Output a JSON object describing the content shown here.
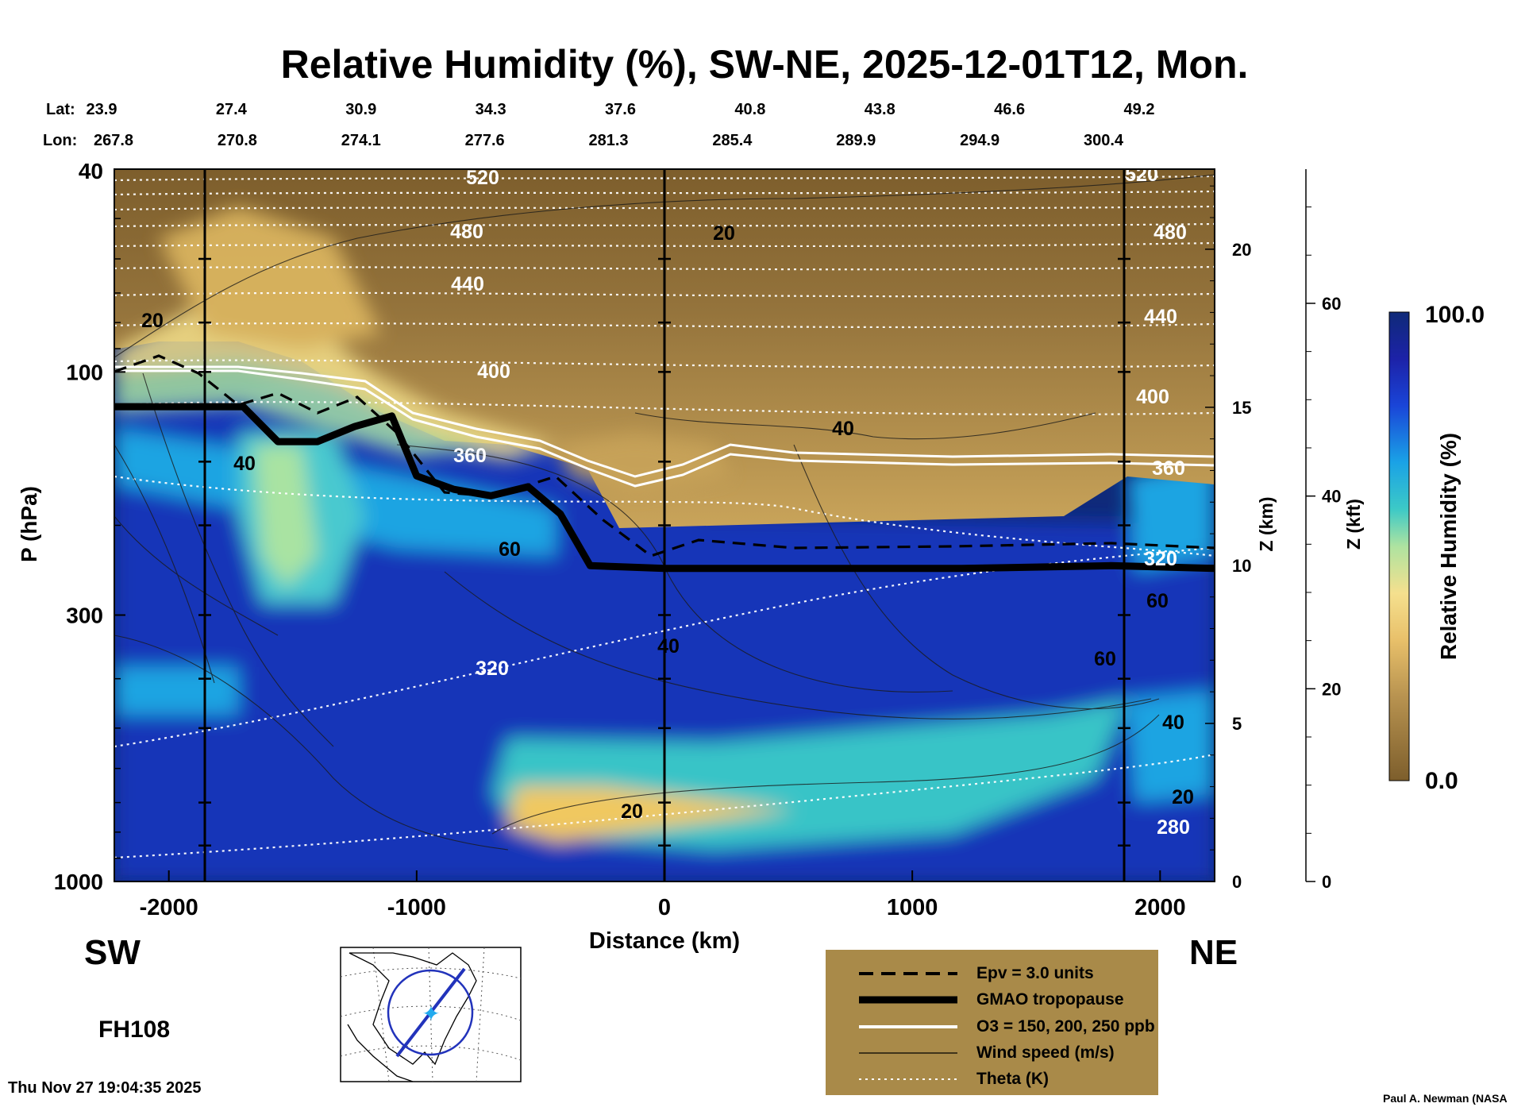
{
  "title": "Relative Humidity (%), SW-NE, 2025-12-01T12, Mon.",
  "header": {
    "lat_label": "Lat:",
    "lon_label": "Lon:",
    "lat": [
      "23.9",
      "27.4",
      "30.9",
      "34.3",
      "37.6",
      "40.8",
      "43.8",
      "46.6",
      "49.2"
    ],
    "lon": [
      "267.8",
      "270.8",
      "274.1",
      "277.6",
      "281.3",
      "285.4",
      "289.9",
      "294.9",
      "300.4"
    ]
  },
  "chart_data": {
    "type": "heatmap",
    "title": "Relative Humidity (%), SW-NE, 2025-12-01T12, Mon.",
    "xlabel": "Distance (km)",
    "ylabel": "P (hPa)",
    "xlim": [
      -2220,
      2220
    ],
    "ylim": [
      1000,
      40
    ],
    "y_scale": "log",
    "x_ticks": [
      "-2000",
      "-1000",
      "0",
      "1000",
      "2000"
    ],
    "y_ticks": [
      "40",
      "100",
      "300",
      "1000"
    ],
    "z_km_label": "Z (km)",
    "z_km_ticks": [
      "20",
      "15",
      "10",
      "5",
      "0"
    ],
    "z_kft_label": "Z (kft)",
    "z_kft_ticks": [
      "60",
      "40",
      "20",
      "0"
    ],
    "colorbar": {
      "label": "Relative Humidity (%)",
      "max": "100.0",
      "min": "0.0"
    },
    "tropopause": [
      [
        -2220,
        117
      ],
      [
        -1700,
        117
      ],
      [
        -1560,
        137
      ],
      [
        -1400,
        137
      ],
      [
        -1250,
        128
      ],
      [
        -1100,
        122
      ],
      [
        -1000,
        160
      ],
      [
        -850,
        170
      ],
      [
        -700,
        175
      ],
      [
        -550,
        168
      ],
      [
        -420,
        190
      ],
      [
        -300,
        240
      ],
      [
        0,
        243
      ],
      [
        600,
        243
      ],
      [
        1200,
        243
      ],
      [
        1800,
        240
      ],
      [
        2220,
        243
      ]
    ],
    "theta_labels": [
      "520",
      "480",
      "440",
      "400",
      "360",
      "320",
      "280"
    ],
    "wind_labels": [
      "20",
      "40",
      "60"
    ],
    "legend": [
      {
        "label": "Epv = 3.0 units",
        "style": "dashed"
      },
      {
        "label": "GMAO tropopause",
        "style": "thick"
      },
      {
        "label": "O3 = 150, 200, 250 ppb",
        "style": "white"
      },
      {
        "label": "Wind speed (m/s)",
        "style": "thin"
      },
      {
        "label": "Theta (K)",
        "style": "dotted"
      }
    ],
    "colors": {
      "legend_bg": "#a98a49",
      "map_track": "#2233bb"
    }
  },
  "side": {
    "sw": "SW",
    "ne": "NE",
    "forecast_hour": "FH108"
  },
  "footer": {
    "timestamp": "Thu Nov 27 19:04:35 2025",
    "credit": "Paul A. Newman (NASA"
  }
}
